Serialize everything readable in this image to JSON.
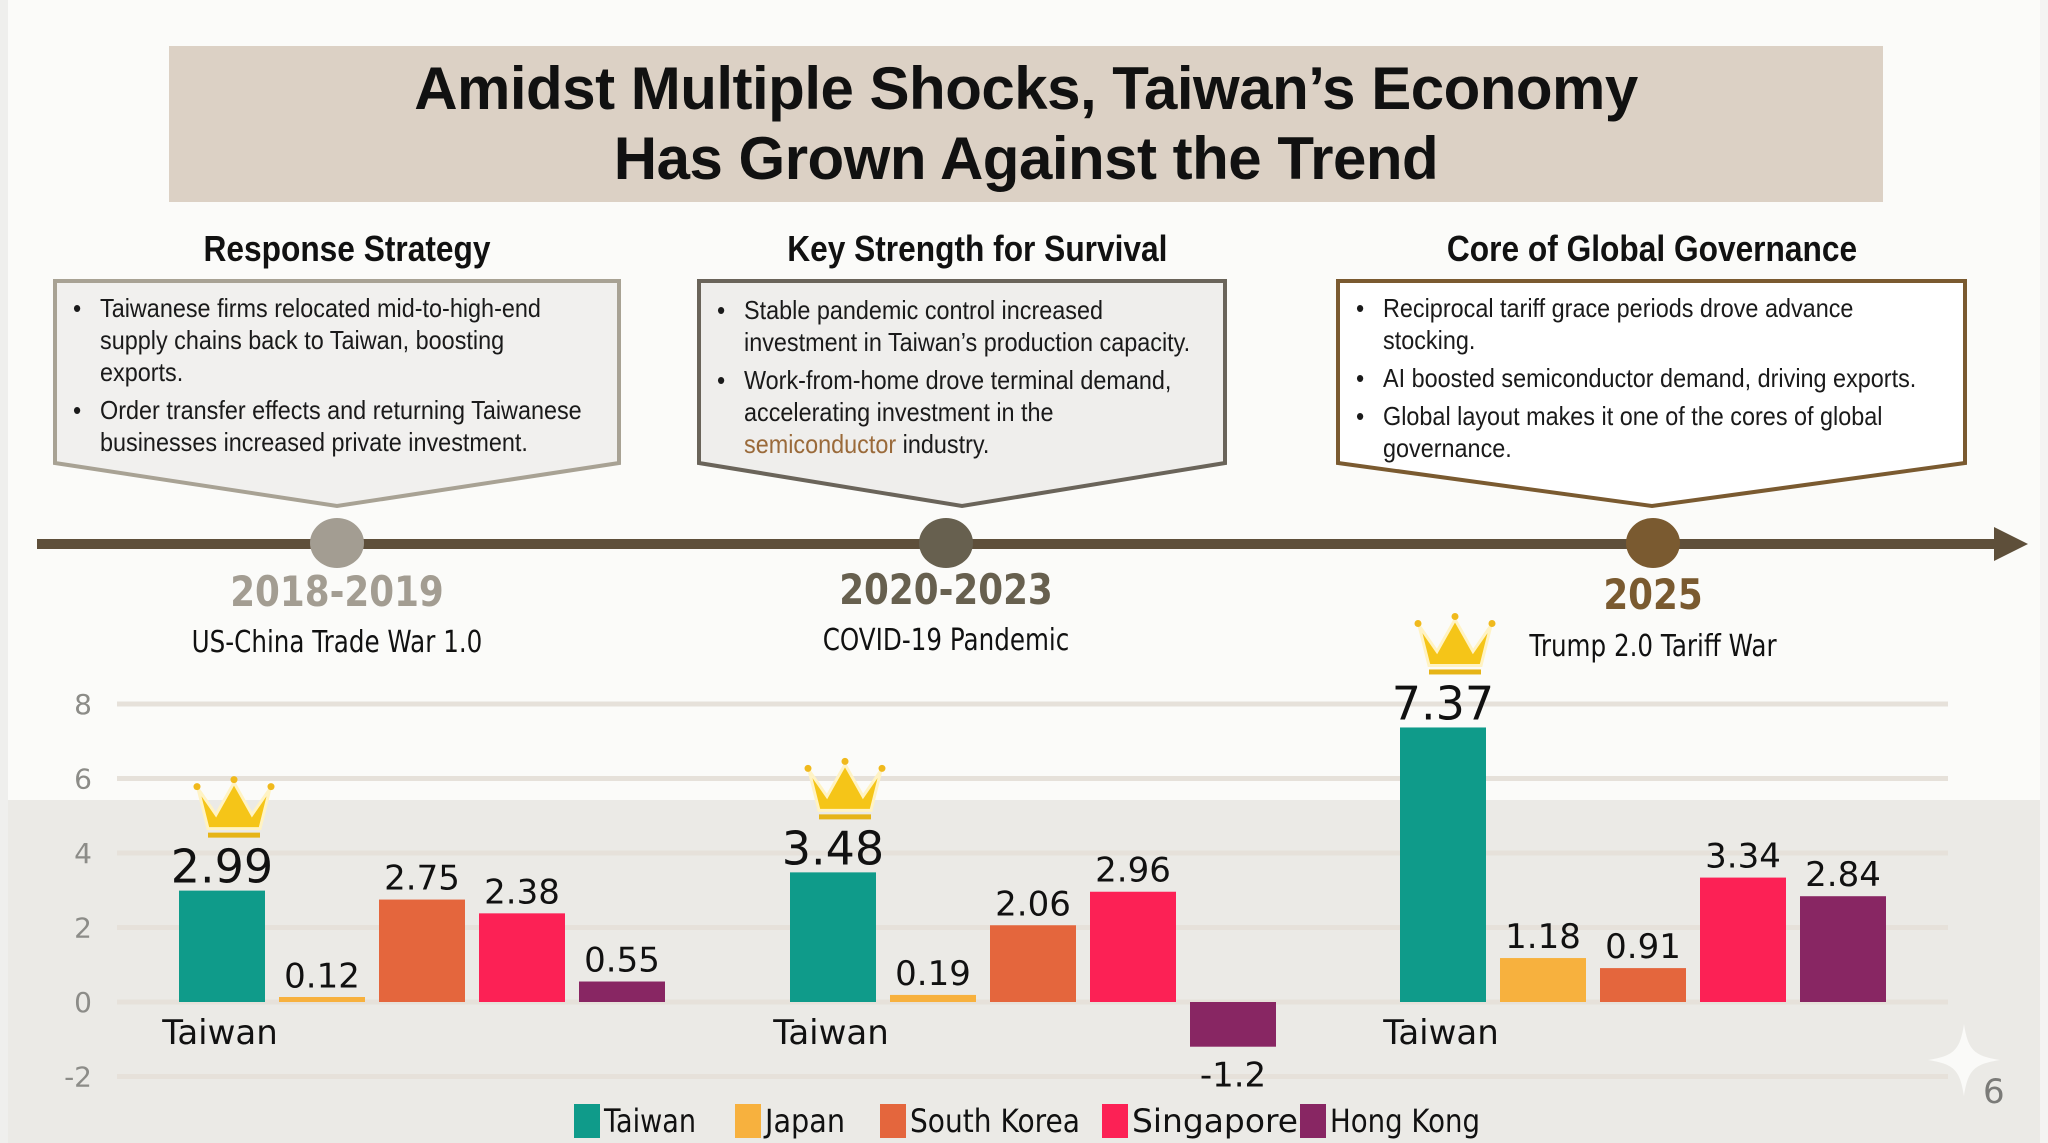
{
  "title": {
    "line1": "Amidst Multiple Shocks, Taiwan’s Economy",
    "line2": "Has Grown Against the Trend"
  },
  "columns": [
    {
      "heading": "Response Strategy",
      "bullets": [
        [
          "Taiwanese firms relocated mid-to-high-end",
          "supply chains back to Taiwan, boosting",
          "exports."
        ],
        [
          "Order transfer effects and returning Taiwanese",
          "businesses increased private investment."
        ]
      ],
      "period": "2018-2019",
      "event": "US-China Trade War 1.0",
      "color": "#a39d92"
    },
    {
      "heading": "Key Strength for Survival",
      "bullets": [
        [
          "Stable pandemic control increased",
          "investment in Taiwan’s production capacity."
        ],
        [
          "Work-from-home drove terminal demand,",
          "accelerating investment in the",
          "semiconductor| industry."
        ]
      ],
      "highlight_word": "semiconductor",
      "period": "2020-2023",
      "event": "COVID-19 Pandemic",
      "color": "#67604f"
    },
    {
      "heading": "Core of Global Governance",
      "bullets": [
        [
          "Reciprocal tariff grace periods drove advance",
          "stocking."
        ],
        [
          "AI boosted semiconductor demand, driving exports."
        ],
        [
          "Global layout makes it one of the cores of global",
          "governance."
        ]
      ],
      "period": "2025",
      "event": "Trump 2.0 Tariff War",
      "color": "#7a5a30"
    }
  ],
  "highlight_color": "#9a6a3a",
  "page_number": "6",
  "chart_data": {
    "type": "bar",
    "title": "",
    "xlabel": "",
    "ylabel": "",
    "ylim": [
      -2,
      8
    ],
    "yticks": [
      8,
      6,
      4,
      2,
      0,
      -2
    ],
    "grid": true,
    "legend_position": "bottom",
    "categories": [
      "2018-2019",
      "2020-2023",
      "2025"
    ],
    "group_label": "Taiwan",
    "crown_series": "Taiwan",
    "series": [
      {
        "name": "Taiwan",
        "color": "#0f9b8a",
        "values": [
          2.99,
          3.48,
          7.37
        ]
      },
      {
        "name": "Japan",
        "color": "#f7b13e",
        "values": [
          0.12,
          0.19,
          1.18
        ]
      },
      {
        "name": "South Korea",
        "color": "#e4663d",
        "values": [
          2.75,
          2.06,
          0.91
        ]
      },
      {
        "name": "Singapore",
        "color": "#fc2155",
        "values": [
          2.38,
          2.96,
          3.34
        ]
      },
      {
        "name": "Hong Kong",
        "color": "#882663",
        "values": [
          0.55,
          -1.2,
          2.84
        ]
      }
    ],
    "value_labels": [
      [
        "2.99",
        "3.48",
        "7.37"
      ],
      [
        "0.12",
        "0.19",
        "1.18"
      ],
      [
        "2.75",
        "2.06",
        "0.91"
      ],
      [
        "2.38",
        "2.96",
        "3.34"
      ],
      [
        "0.55",
        "-1.2",
        "2.84"
      ]
    ]
  }
}
